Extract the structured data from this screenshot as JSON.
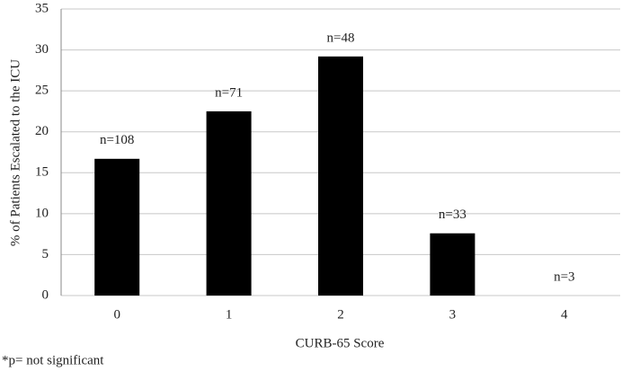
{
  "chart_data": {
    "type": "bar",
    "y_label": "% of Patients Escalated to the ICU",
    "x_label": "CURB-65 Score",
    "footnote": "*p= not significant",
    "categories": [
      "0",
      "1",
      "2",
      "3",
      "4"
    ],
    "values": [
      16.7,
      22.5,
      29.2,
      7.6,
      0
    ],
    "bar_annotations": [
      "n=108",
      "n=71",
      "n=48",
      "n=33",
      "n=3"
    ],
    "color": "#000000",
    "ylim": [
      0,
      35
    ],
    "yticks": [
      0,
      5,
      10,
      15,
      20,
      25,
      30,
      35
    ],
    "grid": true
  }
}
